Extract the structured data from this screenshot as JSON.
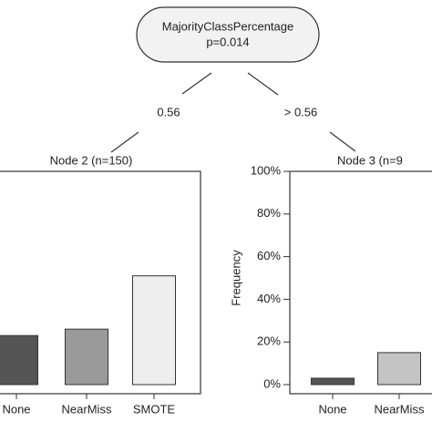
{
  "root": {
    "label": "MajorityClassPercentage",
    "p": "p=0.014"
  },
  "edges": [
    "0.56",
    "> 0.56"
  ],
  "chart_data": [
    {
      "type": "bar",
      "title": "Node 2 (n=150)",
      "categories": [
        "None",
        "NearMiss",
        "SMOTE"
      ],
      "values": [
        23,
        26,
        51
      ],
      "colors": [
        "#555555",
        "#9a9a9a",
        "#eeeeee"
      ],
      "ylim": [
        0,
        100
      ]
    },
    {
      "type": "bar",
      "title": "Node 3 (n=9",
      "ylabel": "Frequency",
      "categories": [
        "None",
        "NearMiss"
      ],
      "values": [
        3,
        15
      ],
      "colors": [
        "#555555",
        "#c4c4c4"
      ],
      "ylim": [
        0,
        100
      ],
      "yticks": [
        {
          "value": 0,
          "label": "0%"
        },
        {
          "value": 20,
          "label": "20%"
        },
        {
          "value": 40,
          "label": "40%"
        },
        {
          "value": 60,
          "label": "60%"
        },
        {
          "value": 80,
          "label": "80%"
        },
        {
          "value": 100,
          "label": "100%"
        }
      ]
    }
  ]
}
